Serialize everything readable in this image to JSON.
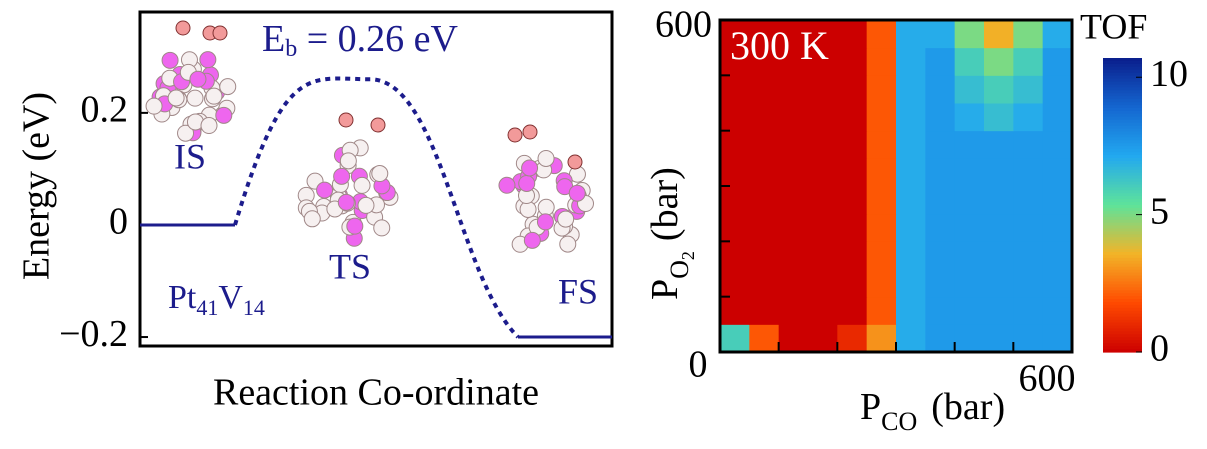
{
  "chart_data": [
    {
      "type": "line",
      "annotation": {
        "E": "E",
        "b": "b",
        "rest": " = 0.26 eV"
      },
      "label": {
        "Pt": "Pt",
        "n1": "41",
        "V": "V",
        "n2": "14"
      },
      "categories": [
        "IS",
        "TS",
        "FS"
      ],
      "values": [
        0,
        0.26,
        -0.2
      ],
      "color": "#1c1c8c",
      "ylabel": "Energy (eV)",
      "xlabel": "Reaction Co-ordinate",
      "ylim": [
        -0.216,
        0.38
      ],
      "yticks": [
        {
          "value": -0.2,
          "label": "−0.2"
        },
        0,
        0.2
      ]
    },
    {
      "type": "heatmap",
      "annotation": "300 K",
      "xlabel": {
        "P": "P",
        "sub": "CO",
        "unit": "(bar)"
      },
      "ylabel": {
        "P": "P",
        "sub": "O",
        "subsub": "2",
        "unit": "(bar)"
      },
      "colorbar_label": "TOF",
      "x": [
        25,
        75,
        125,
        175,
        225,
        275,
        325,
        375,
        425,
        475,
        525,
        575
      ],
      "y": [
        25,
        75,
        125,
        175,
        225,
        275,
        325,
        375,
        425,
        475,
        525,
        575
      ],
      "z": [
        [
          6,
          2,
          0,
          0,
          1,
          3,
          7,
          7.5,
          7.5,
          7.5,
          7.5,
          7.5
        ],
        [
          0,
          0,
          0,
          0,
          0,
          2,
          7,
          7.5,
          7.5,
          7.5,
          7.5,
          7.5
        ],
        [
          0,
          0,
          0,
          0,
          0,
          2,
          7,
          7.5,
          7.5,
          7.5,
          7.5,
          7.5
        ],
        [
          0,
          0,
          0,
          0,
          0,
          2,
          7,
          7.5,
          7.5,
          7.5,
          7.5,
          7.5
        ],
        [
          0,
          0,
          0,
          0,
          0,
          2,
          7,
          7.5,
          7.5,
          7.5,
          7.5,
          7.5
        ],
        [
          0,
          0,
          0,
          0,
          0,
          2,
          7,
          7.5,
          7.5,
          7.5,
          7.5,
          7.5
        ],
        [
          0,
          0,
          0,
          0,
          0,
          2,
          7,
          7.5,
          7.5,
          7.5,
          7.5,
          7.5
        ],
        [
          0,
          0,
          0,
          0,
          0,
          2,
          7,
          7.5,
          7.5,
          7.5,
          7.5,
          7.5
        ],
        [
          0,
          0,
          0,
          0,
          0,
          2,
          7,
          7.5,
          7,
          6.5,
          7,
          7.5
        ],
        [
          0,
          0,
          0,
          0,
          0,
          2,
          7,
          7.5,
          6.5,
          6,
          6.5,
          7.5
        ],
        [
          0,
          0,
          0,
          0,
          0,
          2,
          7,
          7.5,
          6,
          5,
          6,
          7.5
        ],
        [
          0,
          0,
          0,
          0,
          0,
          2,
          7,
          7,
          5,
          3.5,
          5,
          7
        ]
      ],
      "xlim": [
        0,
        600
      ],
      "ylim": [
        0,
        600
      ],
      "xticks": [
        0,
        600
      ],
      "yticks": [
        600
      ],
      "minor_xticks": [
        100,
        200,
        300,
        400,
        500
      ],
      "minor_yticks": [
        100,
        200,
        300,
        400,
        500
      ],
      "clim": [
        0,
        10.7
      ],
      "cticks": [
        0,
        5,
        10
      ],
      "colormap": [
        "#cc0000",
        "#ff4a00",
        "#f2b428",
        "#5ee39a",
        "#22a8f0",
        "#1466d0",
        "#0a1e8c"
      ]
    }
  ]
}
